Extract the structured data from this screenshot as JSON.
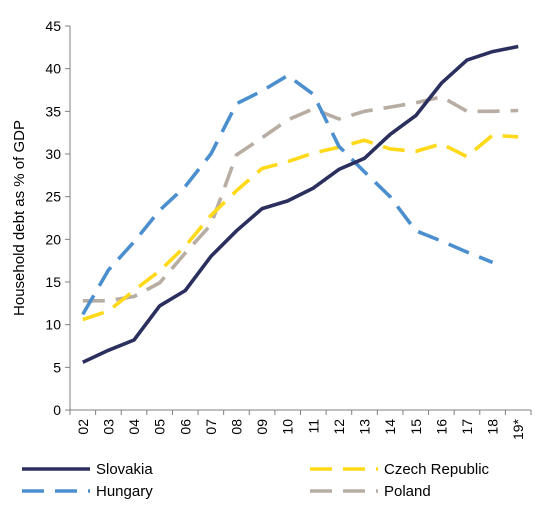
{
  "chart_data": {
    "type": "line",
    "ylabel": "Household debt as % of GDP",
    "xlabel": "",
    "ylim": [
      0,
      45
    ],
    "yticks": [
      0,
      5,
      10,
      15,
      20,
      25,
      30,
      35,
      40,
      45
    ],
    "categories": [
      "02",
      "03",
      "04",
      "05",
      "06",
      "07",
      "08",
      "09",
      "10",
      "11",
      "12",
      "13",
      "14",
      "15",
      "16",
      "17",
      "18",
      "19*"
    ],
    "grid": false,
    "legend_position": "bottom",
    "series": [
      {
        "name": "Slovakia",
        "color": "#2b2f5e",
        "dash": "solid",
        "values": [
          5.6,
          7.0,
          8.2,
          12.2,
          14.0,
          18.0,
          21.0,
          23.6,
          24.5,
          26.0,
          28.2,
          29.5,
          32.3,
          34.5,
          38.3,
          41.0,
          42.0,
          42.6
        ]
      },
      {
        "name": "Czech Republic",
        "color": "#ffd91a",
        "dash": "dashed",
        "values": [
          10.6,
          11.6,
          14.0,
          16.3,
          19.2,
          22.8,
          25.7,
          28.3,
          29.1,
          30.1,
          30.8,
          31.6,
          30.6,
          30.3,
          31.2,
          29.7,
          32.2,
          32.0
        ]
      },
      {
        "name": "Hungary",
        "color": "#4b8fce",
        "dash": "dashed",
        "values": [
          11.2,
          16.4,
          19.7,
          23.4,
          26.2,
          30.0,
          35.9,
          37.4,
          39.2,
          37.0,
          30.9,
          27.9,
          25.0,
          21.0,
          19.8,
          18.5,
          17.3,
          null
        ]
      },
      {
        "name": "Poland",
        "color": "#b8ada3",
        "dash": "dashed",
        "values": [
          12.8,
          12.8,
          13.3,
          14.9,
          18.4,
          21.7,
          29.9,
          31.9,
          34.0,
          35.3,
          34.1,
          35.0,
          35.5,
          36.0,
          36.7,
          35.0,
          35.0,
          35.1
        ]
      }
    ],
    "legend": [
      "Slovakia",
      "Czech Republic",
      "Hungary",
      "Poland"
    ]
  }
}
